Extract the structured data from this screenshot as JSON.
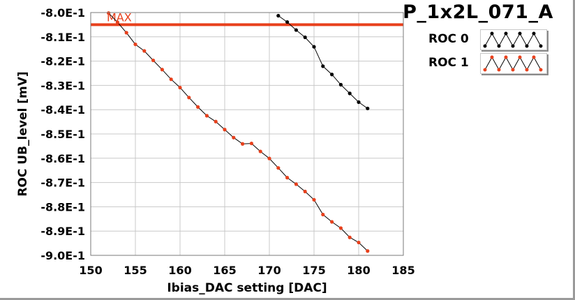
{
  "title": "P_1x2L_071_A",
  "colors": {
    "roc0": "#000000",
    "roc1": "#e8401c",
    "max_line": "#e8401c",
    "grid": "#c8c8c8"
  },
  "chart_data": {
    "type": "line",
    "xlabel": "Ibias_DAC setting [DAC]",
    "ylabel": "ROC UB_level [mV]",
    "xlim": [
      150,
      185
    ],
    "ylim": [
      -0.9,
      -0.8
    ],
    "x_ticks": [
      "150",
      "155",
      "160",
      "165",
      "170",
      "175",
      "180",
      "185"
    ],
    "y_ticks": [
      "-8.0E-1",
      "-8.1E-1",
      "-8.2E-1",
      "-8.3E-1",
      "-8.4E-1",
      "-8.5E-1",
      "-8.6E-1",
      "-8.7E-1",
      "-8.8E-1",
      "-8.9E-1",
      "-9.0E-1"
    ],
    "grid": true,
    "legend_position": "top-right",
    "annotations": [
      {
        "label": "MAX",
        "y": -0.805
      }
    ],
    "series": [
      {
        "name": "ROC 0",
        "x": [
          171,
          172,
          173,
          174,
          175,
          176,
          177,
          178,
          179,
          180,
          181
        ],
        "y": [
          -0.8013,
          -0.8039,
          -0.8072,
          -0.8102,
          -0.8141,
          -0.8221,
          -0.8255,
          -0.8297,
          -0.8333,
          -0.8369,
          -0.8395
        ]
      },
      {
        "name": "ROC 1",
        "x": [
          152,
          153,
          154,
          155,
          156,
          157,
          158,
          159,
          160,
          161,
          162,
          163,
          164,
          165,
          166,
          167,
          168,
          169,
          170,
          171,
          172,
          173,
          174,
          175,
          176,
          177,
          178,
          179,
          180,
          181
        ],
        "y": [
          -0.8002,
          -0.804,
          -0.8083,
          -0.8131,
          -0.8158,
          -0.8197,
          -0.8235,
          -0.8275,
          -0.8309,
          -0.835,
          -0.8389,
          -0.8425,
          -0.8449,
          -0.8482,
          -0.8515,
          -0.8541,
          -0.8539,
          -0.8572,
          -0.8601,
          -0.864,
          -0.868,
          -0.8707,
          -0.8737,
          -0.8771,
          -0.8832,
          -0.8862,
          -0.8888,
          -0.8926,
          -0.8947,
          -0.8982
        ]
      }
    ]
  }
}
